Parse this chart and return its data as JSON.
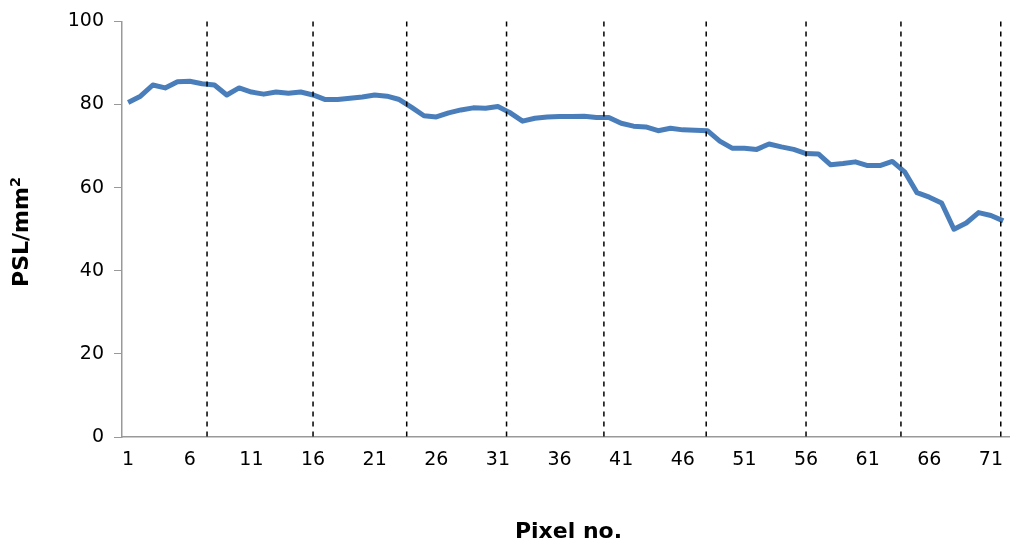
{
  "chart_data": {
    "type": "line",
    "xlabel": "Pixel no.",
    "ylabel": "PSL/mm$^{2}$",
    "x": [
      1,
      2,
      3,
      4,
      5,
      6,
      7,
      8,
      9,
      10,
      11,
      12,
      13,
      14,
      15,
      16,
      17,
      18,
      19,
      20,
      21,
      22,
      23,
      24,
      25,
      26,
      27,
      28,
      29,
      30,
      31,
      32,
      33,
      34,
      35,
      36,
      37,
      38,
      39,
      40,
      41,
      42,
      43,
      44,
      45,
      46,
      47,
      48,
      49,
      50,
      51,
      52,
      53,
      54,
      55,
      56,
      57,
      58,
      59,
      60,
      61,
      62,
      63,
      64,
      65,
      66,
      67,
      68,
      69,
      70,
      71,
      72
    ],
    "series": [
      {
        "color": "#4a7ebb",
        "values": [
          80.5,
          82,
          84.7,
          84,
          85.5,
          85.6,
          85,
          84.7,
          82.3,
          84,
          83,
          82.5,
          83,
          82.7,
          83,
          82.3,
          81.2,
          81.2,
          81.5,
          81.8,
          82.3,
          82,
          81.2,
          79.3,
          77.3,
          77,
          78,
          78.7,
          79.2,
          79.1,
          79.5,
          78,
          76,
          76.7,
          77,
          77.1,
          77.1,
          77.2,
          76.9,
          76.9,
          75.5,
          74.8,
          74.6,
          73.7,
          74.3,
          73.9,
          73.8,
          73.7,
          71.2,
          69.5,
          69.5,
          69.2,
          70.5,
          69.8,
          69.2,
          68.2,
          68.1,
          65.5,
          65.8,
          66.2,
          65.3,
          65.3,
          66.3,
          63.8,
          58.8,
          57.7,
          56.3,
          50,
          51.5,
          54,
          53.3,
          52
        ]
      }
    ],
    "xlim": [
      0.5,
      72.5
    ],
    "xticks": [
      1,
      6,
      11,
      16,
      21,
      26,
      31,
      36,
      41,
      46,
      51,
      56,
      61,
      66,
      71
    ],
    "ylim": [
      0,
      100
    ],
    "yticks": [
      0,
      20,
      40,
      60,
      80,
      100
    ],
    "ref_lines": [
      {
        "axis": "x",
        "value": 7.4,
        "color": "#000000",
        "line_style": "dashed"
      },
      {
        "axis": "x",
        "value": 16,
        "color": "#000000",
        "line_style": "dashed"
      },
      {
        "axis": "x",
        "value": 23.6,
        "color": "#000000",
        "line_style": "dashed"
      },
      {
        "axis": "x",
        "value": 31.7,
        "color": "#000000",
        "line_style": "dashed"
      },
      {
        "axis": "x",
        "value": 39.6,
        "color": "#000000",
        "line_style": "dashed"
      },
      {
        "axis": "x",
        "value": 47.9,
        "color": "#000000",
        "line_style": "dashed"
      },
      {
        "axis": "x",
        "value": 56,
        "color": "#000000",
        "line_style": "dashed"
      },
      {
        "axis": "x",
        "value": 63.7,
        "color": "#000000",
        "line_style": "dashed"
      },
      {
        "axis": "x",
        "value": 71.8,
        "color": "#000000",
        "line_style": "dashed"
      }
    ],
    "grid": false,
    "legend": false,
    "marker": "none",
    "line_style": "solid"
  }
}
